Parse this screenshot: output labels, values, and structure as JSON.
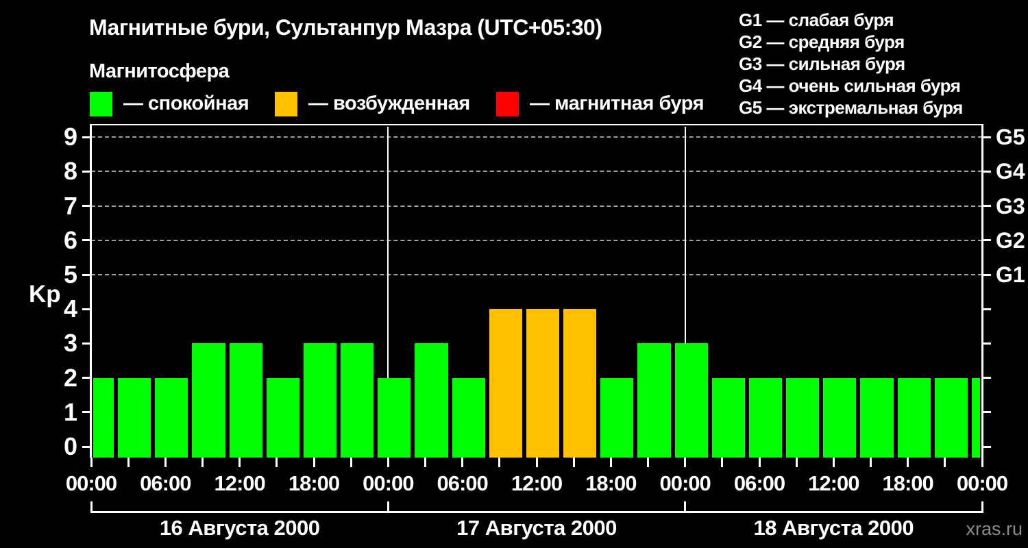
{
  "title": "Магнитные бури, Сультанпур Мазра (UTC+05:30)",
  "subtitle": "Магнитосфера",
  "legend": {
    "items": [
      {
        "name": "quiet",
        "label": "— спокойная",
        "color": "#00ff00"
      },
      {
        "name": "unsettled",
        "label": "— возбужденная",
        "color": "#ffc000"
      },
      {
        "name": "storm",
        "label": "— магнитная буря",
        "color": "#ff0000"
      }
    ]
  },
  "storm_scale_legend": [
    "G1 — слабая буря",
    "G2 — средняя буря",
    "G3 — сильная буря",
    "G4 — очень сильная буря",
    "G5 — экстремальная буря"
  ],
  "watermark": "xras.ru",
  "chart_data": {
    "type": "bar",
    "title": "Магнитные бури, Сультанпур Мазра (UTC+05:30)",
    "xlabel": "",
    "ylabel": "Kp",
    "ylim": [
      0,
      9
    ],
    "xlim_hours": [
      0,
      72
    ],
    "grid": "dashed horizontal at Kp 5-9 only",
    "y_ticks": [
      0,
      1,
      2,
      3,
      4,
      5,
      6,
      7,
      8,
      9
    ],
    "g_levels": [
      {
        "label": "G1",
        "kp": 5
      },
      {
        "label": "G2",
        "kp": 6
      },
      {
        "label": "G3",
        "kp": 7
      },
      {
        "label": "G4",
        "kp": 8
      },
      {
        "label": "G5",
        "kp": 9
      }
    ],
    "x_labeled_ticks": [
      {
        "hour": 0,
        "label": "00:00"
      },
      {
        "hour": 6,
        "label": "06:00"
      },
      {
        "hour": 12,
        "label": "12:00"
      },
      {
        "hour": 18,
        "label": "18:00"
      },
      {
        "hour": 24,
        "label": "00:00"
      },
      {
        "hour": 30,
        "label": "06:00"
      },
      {
        "hour": 36,
        "label": "12:00"
      },
      {
        "hour": 42,
        "label": "18:00"
      },
      {
        "hour": 48,
        "label": "00:00"
      },
      {
        "hour": 54,
        "label": "06:00"
      },
      {
        "hour": 60,
        "label": "12:00"
      },
      {
        "hour": 66,
        "label": "18:00"
      },
      {
        "hour": 72,
        "label": "00:00"
      }
    ],
    "x_minor_tick_step_hours": 3,
    "day_boundary_hours": [
      24,
      48
    ],
    "days": [
      {
        "label": "16 Августа 2000",
        "start_hour": 0,
        "end_hour": 24
      },
      {
        "label": "17 Августа 2000",
        "start_hour": 24,
        "end_hour": 48
      },
      {
        "label": "18 Августа 2000",
        "start_hour": 48,
        "end_hour": 72
      }
    ],
    "bars": [
      {
        "start_hour": 0,
        "end_hour": 2,
        "kp": 2,
        "state": "quiet"
      },
      {
        "start_hour": 2,
        "end_hour": 5,
        "kp": 2,
        "state": "quiet"
      },
      {
        "start_hour": 5,
        "end_hour": 8,
        "kp": 2,
        "state": "quiet"
      },
      {
        "start_hour": 8,
        "end_hour": 11,
        "kp": 3,
        "state": "quiet"
      },
      {
        "start_hour": 11,
        "end_hour": 14,
        "kp": 3,
        "state": "quiet"
      },
      {
        "start_hour": 14,
        "end_hour": 17,
        "kp": 2,
        "state": "quiet"
      },
      {
        "start_hour": 17,
        "end_hour": 20,
        "kp": 3,
        "state": "quiet"
      },
      {
        "start_hour": 20,
        "end_hour": 23,
        "kp": 3,
        "state": "quiet"
      },
      {
        "start_hour": 23,
        "end_hour": 26,
        "kp": 2,
        "state": "quiet"
      },
      {
        "start_hour": 26,
        "end_hour": 29,
        "kp": 3,
        "state": "quiet"
      },
      {
        "start_hour": 29,
        "end_hour": 32,
        "kp": 2,
        "state": "quiet"
      },
      {
        "start_hour": 32,
        "end_hour": 35,
        "kp": 4,
        "state": "unsettled"
      },
      {
        "start_hour": 35,
        "end_hour": 38,
        "kp": 4,
        "state": "unsettled"
      },
      {
        "start_hour": 38,
        "end_hour": 41,
        "kp": 4,
        "state": "unsettled"
      },
      {
        "start_hour": 41,
        "end_hour": 44,
        "kp": 2,
        "state": "quiet"
      },
      {
        "start_hour": 44,
        "end_hour": 47,
        "kp": 3,
        "state": "quiet"
      },
      {
        "start_hour": 47,
        "end_hour": 50,
        "kp": 3,
        "state": "quiet"
      },
      {
        "start_hour": 50,
        "end_hour": 53,
        "kp": 2,
        "state": "quiet"
      },
      {
        "start_hour": 53,
        "end_hour": 56,
        "kp": 2,
        "state": "quiet"
      },
      {
        "start_hour": 56,
        "end_hour": 59,
        "kp": 2,
        "state": "quiet"
      },
      {
        "start_hour": 59,
        "end_hour": 62,
        "kp": 2,
        "state": "quiet"
      },
      {
        "start_hour": 62,
        "end_hour": 65,
        "kp": 2,
        "state": "quiet"
      },
      {
        "start_hour": 65,
        "end_hour": 68,
        "kp": 2,
        "state": "quiet"
      },
      {
        "start_hour": 68,
        "end_hour": 71,
        "kp": 2,
        "state": "quiet"
      },
      {
        "start_hour": 71,
        "end_hour": 72,
        "kp": 2,
        "state": "quiet"
      }
    ],
    "state_colors": {
      "quiet": "#00ff00",
      "unsettled": "#ffc000",
      "storm": "#ff0000"
    },
    "legend_position": "top-left",
    "axis_color": "#ffffff",
    "gridline_color": "#a0a0a0",
    "background_color": "#000000"
  }
}
